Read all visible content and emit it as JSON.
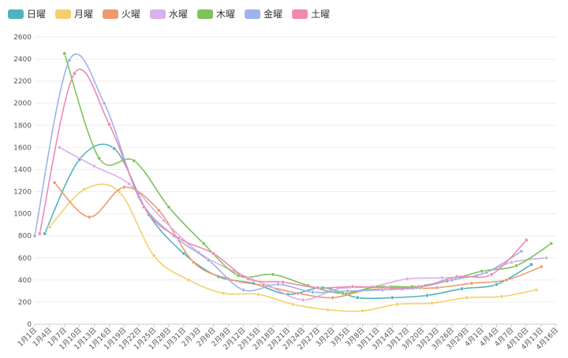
{
  "chart_data": {
    "type": "line",
    "categories": [
      "1月1日",
      null,
      null,
      "1月4日",
      null,
      null,
      "1月7日",
      null,
      null,
      "1月10日",
      null,
      null,
      "1月13日",
      null,
      null,
      "1月16日",
      null,
      null,
      "1月19日",
      null,
      null,
      "1月22日",
      null,
      null,
      "1月25日",
      null,
      null,
      "1月28日",
      null,
      null,
      "1月31日",
      null,
      null,
      "2月3日",
      null,
      null,
      "2月6日",
      null,
      null,
      "2月9日",
      null,
      null,
      "2月12日",
      null,
      null,
      "2月15日",
      null,
      null,
      "2月18日",
      null,
      null,
      "2月21日",
      null,
      null,
      "2月24日",
      null,
      null,
      "2月27日",
      null,
      null,
      "3月2日",
      null,
      null,
      "3月5日",
      null,
      null,
      "3月8日",
      null,
      null,
      "3月11日",
      null,
      null,
      "3月14日",
      null,
      null,
      "3月17日",
      null,
      null,
      "3月20日",
      null,
      null,
      "3月23日",
      null,
      null,
      "3月26日",
      null,
      null,
      "3月29日",
      null,
      null,
      "4月1日",
      null,
      null,
      "4月4日",
      null,
      null,
      "4月7日",
      null,
      null,
      "4月10日",
      null,
      null,
      "4月13日",
      null,
      null,
      "4月16日"
    ],
    "series": [
      {
        "name": "日曜",
        "color": "#4fb3bf",
        "values": [
          null,
          null,
          820,
          null,
          null,
          null,
          null,
          null,
          null,
          1490,
          null,
          null,
          null,
          null,
          null,
          null,
          1590,
          null,
          null,
          null,
          null,
          null,
          null,
          990,
          null,
          null,
          null,
          null,
          null,
          null,
          640,
          null,
          null,
          null,
          null,
          null,
          null,
          430,
          null,
          null,
          null,
          null,
          null,
          null,
          370,
          null,
          null,
          null,
          null,
          null,
          null,
          270,
          null,
          null,
          null,
          null,
          null,
          null,
          330,
          null,
          null,
          null,
          null,
          null,
          null,
          240,
          null,
          null,
          null,
          null,
          null,
          null,
          240,
          null,
          null,
          null,
          null,
          null,
          null,
          260,
          null,
          null,
          null,
          null,
          null,
          null,
          320,
          null,
          null,
          null,
          null,
          null,
          null,
          360,
          null,
          null,
          null,
          null,
          null,
          null,
          540,
          null,
          null,
          null,
          null,
          null
        ]
      },
      {
        "name": "月曜",
        "color": "#f5cf6b",
        "values": [
          null,
          null,
          null,
          880,
          null,
          null,
          null,
          null,
          null,
          null,
          1220,
          null,
          null,
          null,
          null,
          null,
          null,
          1200,
          null,
          null,
          null,
          null,
          null,
          null,
          620,
          null,
          null,
          null,
          null,
          null,
          null,
          400,
          null,
          null,
          null,
          null,
          null,
          null,
          280,
          null,
          null,
          null,
          null,
          null,
          null,
          270,
          null,
          null,
          null,
          null,
          null,
          null,
          180,
          null,
          null,
          null,
          null,
          null,
          null,
          130,
          null,
          null,
          null,
          null,
          null,
          null,
          120,
          null,
          null,
          null,
          null,
          null,
          null,
          180,
          null,
          null,
          null,
          null,
          null,
          null,
          190,
          null,
          null,
          null,
          null,
          null,
          null,
          240,
          null,
          null,
          null,
          null,
          null,
          null,
          250,
          null,
          null,
          null,
          null,
          null,
          null,
          310,
          null,
          null,
          null,
          null
        ]
      },
      {
        "name": "火曜",
        "color": "#ee9a6a",
        "values": [
          null,
          null,
          null,
          null,
          1280,
          null,
          null,
          null,
          null,
          null,
          null,
          970,
          null,
          null,
          null,
          null,
          null,
          null,
          1240,
          null,
          null,
          null,
          null,
          null,
          null,
          1030,
          null,
          null,
          null,
          null,
          null,
          null,
          560,
          null,
          null,
          null,
          null,
          null,
          null,
          410,
          null,
          null,
          null,
          null,
          null,
          null,
          350,
          null,
          null,
          null,
          null,
          null,
          null,
          280,
          null,
          null,
          null,
          null,
          null,
          null,
          240,
          null,
          null,
          null,
          null,
          null,
          null,
          310,
          null,
          null,
          null,
          null,
          null,
          null,
          320,
          null,
          null,
          null,
          null,
          null,
          null,
          330,
          null,
          null,
          null,
          null,
          null,
          null,
          370,
          null,
          null,
          null,
          null,
          null,
          null,
          400,
          null,
          null,
          null,
          null,
          null,
          null,
          520,
          null,
          null,
          null
        ]
      },
      {
        "name": "水曜",
        "color": "#d9b0e8",
        "values": [
          null,
          null,
          null,
          null,
          null,
          1600,
          null,
          null,
          null,
          null,
          null,
          null,
          1430,
          null,
          null,
          null,
          null,
          null,
          null,
          1270,
          null,
          null,
          null,
          null,
          null,
          null,
          940,
          null,
          null,
          null,
          null,
          null,
          null,
          650,
          null,
          null,
          null,
          null,
          null,
          null,
          480,
          null,
          null,
          null,
          null,
          null,
          null,
          350,
          null,
          null,
          null,
          null,
          null,
          null,
          220,
          null,
          null,
          null,
          null,
          null,
          null,
          320,
          null,
          null,
          null,
          null,
          null,
          null,
          340,
          null,
          null,
          null,
          null,
          null,
          null,
          410,
          null,
          null,
          null,
          null,
          null,
          null,
          420,
          null,
          null,
          null,
          null,
          null,
          null,
          440,
          null,
          null,
          null,
          null,
          null,
          null,
          560,
          null,
          null,
          null,
          null,
          null,
          null,
          600,
          null,
          null
        ]
      },
      {
        "name": "木曜",
        "color": "#7dc35a",
        "values": [
          null,
          null,
          null,
          null,
          null,
          null,
          2450,
          null,
          null,
          null,
          null,
          null,
          null,
          1500,
          null,
          null,
          null,
          null,
          null,
          null,
          1480,
          null,
          null,
          null,
          null,
          null,
          null,
          1060,
          null,
          null,
          null,
          null,
          null,
          null,
          730,
          null,
          null,
          null,
          null,
          null,
          null,
          440,
          null,
          null,
          null,
          null,
          null,
          null,
          450,
          null,
          null,
          null,
          null,
          null,
          null,
          350,
          null,
          null,
          null,
          null,
          null,
          null,
          280,
          null,
          null,
          null,
          null,
          null,
          null,
          340,
          null,
          null,
          null,
          null,
          null,
          null,
          340,
          null,
          null,
          null,
          null,
          null,
          null,
          390,
          null,
          null,
          null,
          null,
          null,
          null,
          480,
          null,
          null,
          null,
          null,
          null,
          null,
          530,
          null,
          null,
          null,
          null,
          null,
          null,
          730,
          null
        ]
      },
      {
        "name": "金曜",
        "color": "#9db3ec",
        "values": [
          800,
          null,
          null,
          null,
          null,
          null,
          null,
          2390,
          null,
          null,
          null,
          null,
          null,
          null,
          2000,
          null,
          null,
          null,
          null,
          null,
          null,
          1150,
          null,
          null,
          null,
          null,
          null,
          null,
          800,
          null,
          null,
          null,
          null,
          null,
          null,
          580,
          null,
          null,
          null,
          null,
          null,
          null,
          310,
          null,
          null,
          null,
          null,
          null,
          null,
          360,
          null,
          null,
          null,
          null,
          null,
          null,
          290,
          null,
          null,
          null,
          null,
          null,
          null,
          300,
          null,
          null,
          null,
          null,
          null,
          null,
          310,
          null,
          null,
          null,
          null,
          null,
          null,
          330,
          null,
          null,
          null,
          null,
          null,
          null,
          400,
          null,
          null,
          null,
          null,
          null,
          null,
          470,
          null,
          null,
          null,
          null,
          null,
          null,
          660,
          null,
          null,
          null,
          null,
          null,
          null,
          null
        ]
      },
      {
        "name": "土曜",
        "color": "#f088b0",
        "values": [
          null,
          820,
          null,
          null,
          null,
          null,
          null,
          null,
          2270,
          null,
          null,
          null,
          null,
          null,
          null,
          1810,
          null,
          null,
          null,
          null,
          null,
          null,
          1060,
          null,
          null,
          null,
          null,
          null,
          null,
          780,
          null,
          null,
          null,
          null,
          null,
          null,
          640,
          null,
          null,
          null,
          null,
          null,
          null,
          410,
          null,
          null,
          null,
          null,
          null,
          null,
          380,
          null,
          null,
          null,
          null,
          null,
          null,
          330,
          null,
          null,
          null,
          null,
          null,
          null,
          340,
          null,
          null,
          null,
          null,
          null,
          null,
          330,
          null,
          null,
          null,
          null,
          null,
          null,
          340,
          null,
          null,
          null,
          null,
          null,
          null,
          430,
          null,
          null,
          null,
          null,
          null,
          null,
          450,
          null,
          null,
          null,
          null,
          null,
          null,
          760,
          null,
          null,
          null,
          null,
          null,
          null
        ]
      }
    ],
    "ylim": [
      0,
      2600
    ],
    "yticks": [
      0,
      200,
      400,
      600,
      800,
      1000,
      1200,
      1400,
      1600,
      1800,
      2000,
      2200,
      2400,
      2600
    ],
    "grid": true,
    "smooth": true,
    "connect_nulls": true,
    "legend": "top-left"
  }
}
